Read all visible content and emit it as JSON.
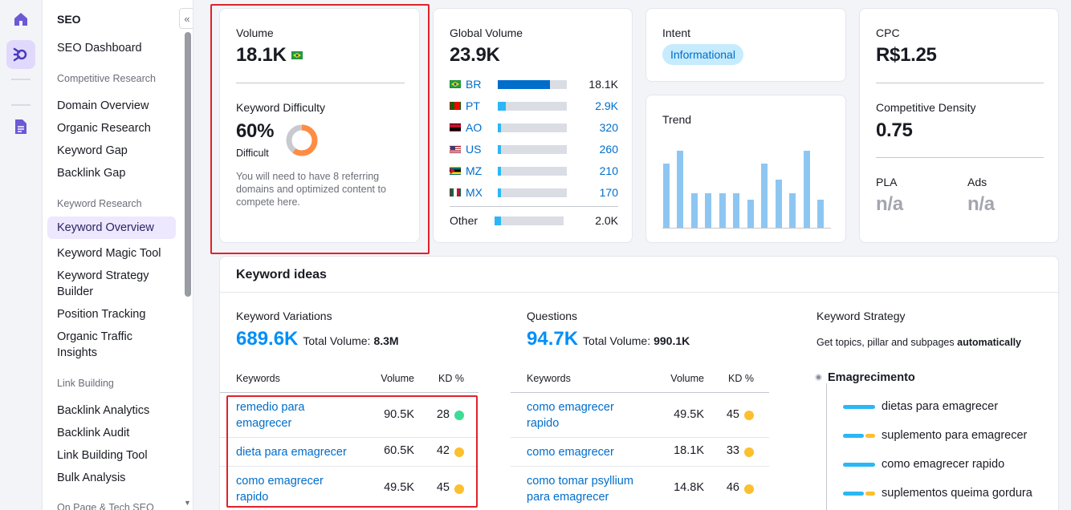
{
  "sidebar": {
    "title": "SEO",
    "dashboard": "SEO Dashboard",
    "sections": [
      {
        "header": "Competitive Research",
        "items": [
          "Domain Overview",
          "Organic Research",
          "Keyword Gap",
          "Backlink Gap"
        ]
      },
      {
        "header": "Keyword Research",
        "items": [
          "Keyword Overview",
          "Keyword Magic Tool",
          "Keyword Strategy Builder",
          "Position Tracking",
          "Organic Traffic Insights"
        ]
      },
      {
        "header": "Link Building",
        "items": [
          "Backlink Analytics",
          "Backlink Audit",
          "Link Building Tool",
          "Bulk Analysis"
        ]
      },
      {
        "header": "On Page & Tech SEO",
        "items": []
      }
    ],
    "active_item": "Keyword Overview"
  },
  "volume_card": {
    "label": "Volume",
    "value": "18.1K",
    "flag_icon": "brazil-flag-icon",
    "kd_label": "Keyword Difficulty",
    "kd_value": "60%",
    "kd_percent": 60,
    "kd_level": "Difficult",
    "kd_note": "You will need to have 8 referring domains and optimized content to compete here.",
    "kd_color": "#ff8c43"
  },
  "global_volume": {
    "label": "Global Volume",
    "value": "23.9K",
    "countries": [
      {
        "code": "BR",
        "value": "18.1K",
        "fill": 0.76,
        "flag": "brazil-flag-icon"
      },
      {
        "code": "PT",
        "value": "2.9K",
        "fill": 0.12,
        "flag": "portugal-flag-icon"
      },
      {
        "code": "AO",
        "value": "320",
        "fill": 0.03,
        "flag": "angola-flag-icon"
      },
      {
        "code": "US",
        "value": "260",
        "fill": 0.03,
        "flag": "usa-flag-icon"
      },
      {
        "code": "MZ",
        "value": "210",
        "fill": 0.03,
        "flag": "mozambique-flag-icon"
      },
      {
        "code": "MX",
        "value": "170",
        "fill": 0.03,
        "flag": "mexico-flag-icon"
      }
    ],
    "other_label": "Other",
    "other_value": "2.0K",
    "other_fill": 0.09
  },
  "intent": {
    "label": "Intent",
    "badge": "Informational"
  },
  "trend": {
    "label": "Trend",
    "values": [
      0.73,
      0.87,
      0.39,
      0.39,
      0.39,
      0.39,
      0.32,
      0.73,
      0.55,
      0.39,
      0.87,
      0.32
    ]
  },
  "cpc": {
    "label": "CPC",
    "value": "R$1.25",
    "density_label": "Competitive Density",
    "density_value": "0.75",
    "pla_label": "PLA",
    "pla_value": "n/a",
    "ads_label": "Ads",
    "ads_value": "n/a"
  },
  "keyword_ideas": {
    "title": "Keyword ideas",
    "variations": {
      "label": "Keyword Variations",
      "count": "689.6K",
      "total_label": "Total Volume:",
      "total_value": "8.3M",
      "col_kw": "Keywords",
      "col_vol": "Volume",
      "col_kd": "KD %",
      "rows": [
        {
          "kw": "remedio para emagrecer",
          "vol": "90.5K",
          "kd": "28",
          "kd_color": "#3ddc97"
        },
        {
          "kw": "dieta para emagrecer",
          "vol": "60.5K",
          "kd": "42",
          "kd_color": "#fcbf2e"
        },
        {
          "kw": "como emagrecer rapido",
          "vol": "49.5K",
          "kd": "45",
          "kd_color": "#fcbf2e"
        }
      ]
    },
    "questions": {
      "label": "Questions",
      "count": "94.7K",
      "total_label": "Total Volume:",
      "total_value": "990.1K",
      "col_kw": "Keywords",
      "col_vol": "Volume",
      "col_kd": "KD %",
      "rows": [
        {
          "kw": "como emagrecer rapido",
          "vol": "49.5K",
          "kd": "45",
          "kd_color": "#fcbf2e"
        },
        {
          "kw": "como emagrecer",
          "vol": "18.1K",
          "kd": "33",
          "kd_color": "#fcbf2e"
        },
        {
          "kw": "como tomar psyllium para emagrecer",
          "vol": "14.8K",
          "kd": "46",
          "kd_color": "#fcbf2e"
        }
      ]
    },
    "strategy": {
      "label": "Keyword Strategy",
      "desc_prefix": "Get topics, pillar and subpages",
      "desc_bold": "automatically",
      "root": "Emagrecimento",
      "items": [
        {
          "text": "dietas para emagrecer",
          "type": "full"
        },
        {
          "text": "suplemento para emagrecer",
          "type": "split"
        },
        {
          "text": "como emagrecer rapido",
          "type": "full"
        },
        {
          "text": "suplementos queima gordura",
          "type": "split"
        }
      ]
    }
  }
}
